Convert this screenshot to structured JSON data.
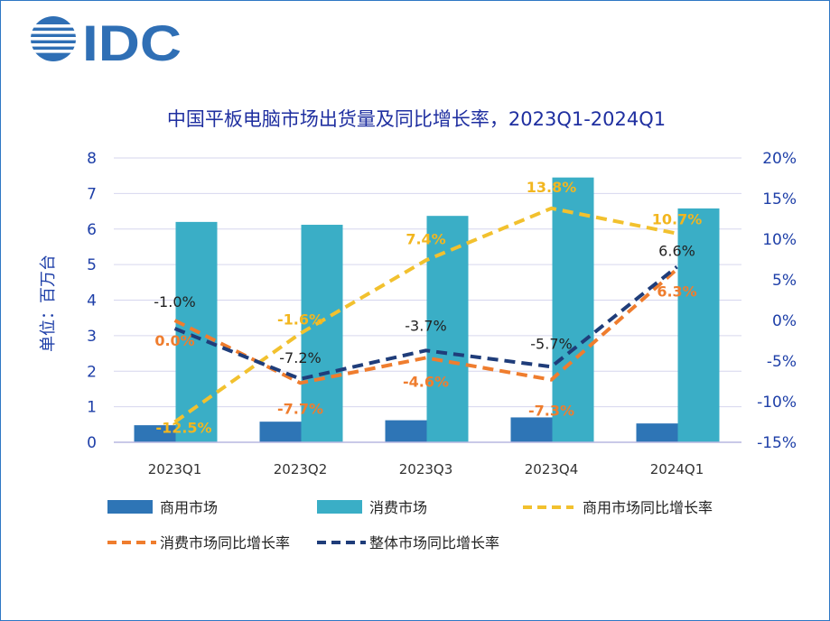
{
  "logo": {
    "text": "IDC"
  },
  "chart_data": {
    "type": "bar+line",
    "title": "中国平板电脑市场出货量及同比增长率，2023Q1-2024Q1",
    "ylabel": "单位：百万台",
    "categories": [
      "2023Q1",
      "2023Q2",
      "2023Q3",
      "2023Q4",
      "2024Q1"
    ],
    "ylim": [
      0,
      8
    ],
    "y_ticks": [
      "0",
      "1",
      "2",
      "3",
      "4",
      "5",
      "6",
      "7",
      "8"
    ],
    "y2lim": [
      -15,
      20
    ],
    "y2_ticks": [
      "-15%",
      "-10%",
      "-5%",
      "0%",
      "5%",
      "10%",
      "15%",
      "20%"
    ],
    "bar_series": [
      {
        "name": "商用市场",
        "color": "#2e75b6",
        "values": [
          0.48,
          0.58,
          0.62,
          0.7,
          0.53
        ]
      },
      {
        "name": "消费市场",
        "color": "#3aaec6",
        "values": [
          6.2,
          6.12,
          6.37,
          7.45,
          6.58
        ]
      }
    ],
    "line_series": [
      {
        "name": "商用市场同比增长率",
        "color": "#f2c12e",
        "label_class": "lbl-yel",
        "values": [
          -12.5,
          -1.6,
          7.4,
          13.8,
          10.7
        ],
        "labels": [
          "-12.5%",
          "-1.6%",
          "7.4%",
          "13.8%",
          "10.7%"
        ]
      },
      {
        "name": "消费市场同比增长率",
        "color": "#ef7d2e",
        "label_class": "lbl-org",
        "values": [
          0.0,
          -7.7,
          -4.6,
          -7.3,
          6.3
        ],
        "labels": [
          "0.0%",
          "-7.7%",
          "-4.6%",
          "-7.3%",
          "6.3%"
        ]
      },
      {
        "name": "整体市场同比增长率",
        "color": "#1f3d7a",
        "label_class": "lbl-nav",
        "values": [
          -1.0,
          -7.2,
          -3.7,
          -5.7,
          6.6
        ],
        "labels": [
          "-1.0%",
          "-7.2%",
          "-3.7%",
          "-5.7%",
          "6.6%"
        ]
      }
    ],
    "legend": [
      "商用市场",
      "消费市场",
      "商用市场同比增长率",
      "消费市场同比增长率",
      "整体市场同比增长率"
    ],
    "grid": true,
    "legend_position": "bottom"
  }
}
